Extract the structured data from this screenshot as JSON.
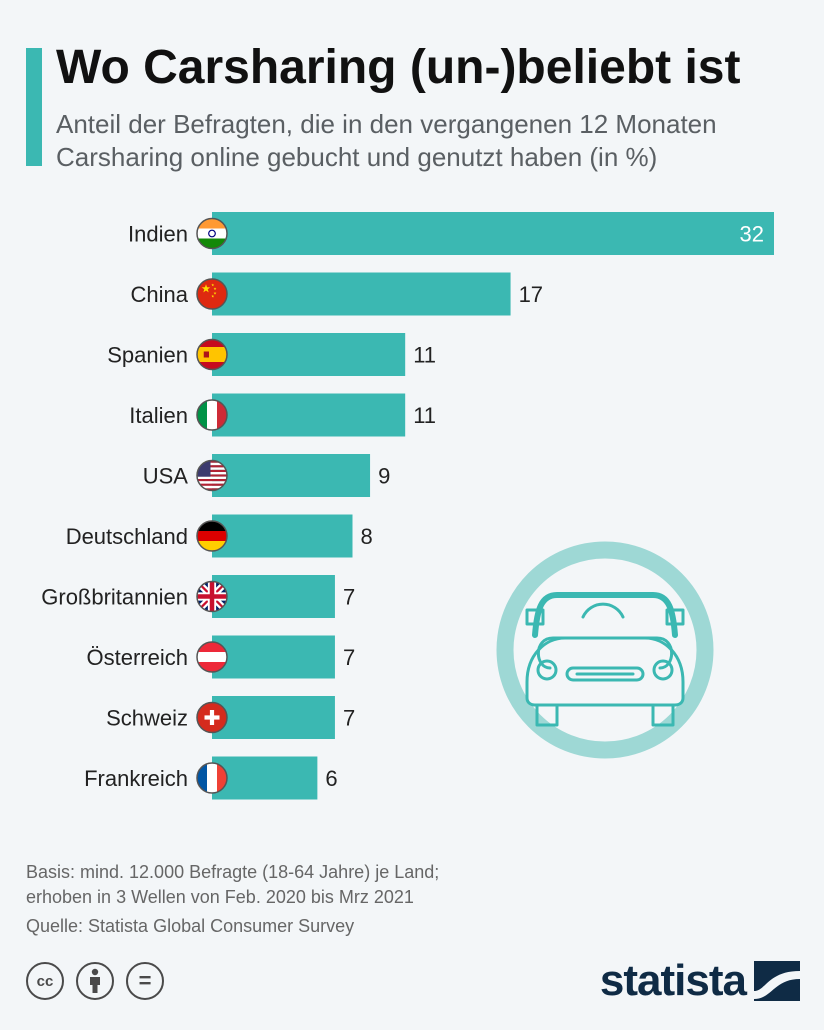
{
  "header": {
    "title": "Wo Carsharing (un-)beliebt ist",
    "subtitle": "Anteil der Befragten, die in den vergangenen 12 Monaten Carsharing online gebucht und genutzt haben (in %)"
  },
  "chart_data": {
    "type": "bar",
    "orientation": "horizontal",
    "categories": [
      "Indien",
      "China",
      "Spanien",
      "Italien",
      "USA",
      "Deutschland",
      "Großbritannien",
      "Österreich",
      "Schweiz",
      "Frankreich"
    ],
    "values": [
      32,
      17,
      11,
      11,
      9,
      8,
      7,
      7,
      7,
      6
    ],
    "flags": [
      "india-flag-icon",
      "china-flag-icon",
      "spain-flag-icon",
      "italy-flag-icon",
      "usa-flag-icon",
      "germany-flag-icon",
      "uk-flag-icon",
      "austria-flag-icon",
      "switzerland-flag-icon",
      "france-flag-icon"
    ],
    "xlim": [
      0,
      32
    ],
    "grid": false,
    "bar_color": "#3bb8b2"
  },
  "illustration": {
    "icon": "car-icon",
    "ring_color": "#9ed8d5",
    "car_color": "#3bb8b2"
  },
  "footer": {
    "basis_line1": "Basis: mind. 12.000 Befragte (18-64 Jahre) je Land;",
    "basis_line2": "erhoben in 3 Wellen von Feb. 2020 bis Mrz 2021",
    "source": "Quelle: Statista Global Consumer Survey"
  },
  "licenses": {
    "cc": "cc",
    "equals": "="
  },
  "brand": {
    "name": "statista",
    "color": "#0f2b45"
  }
}
